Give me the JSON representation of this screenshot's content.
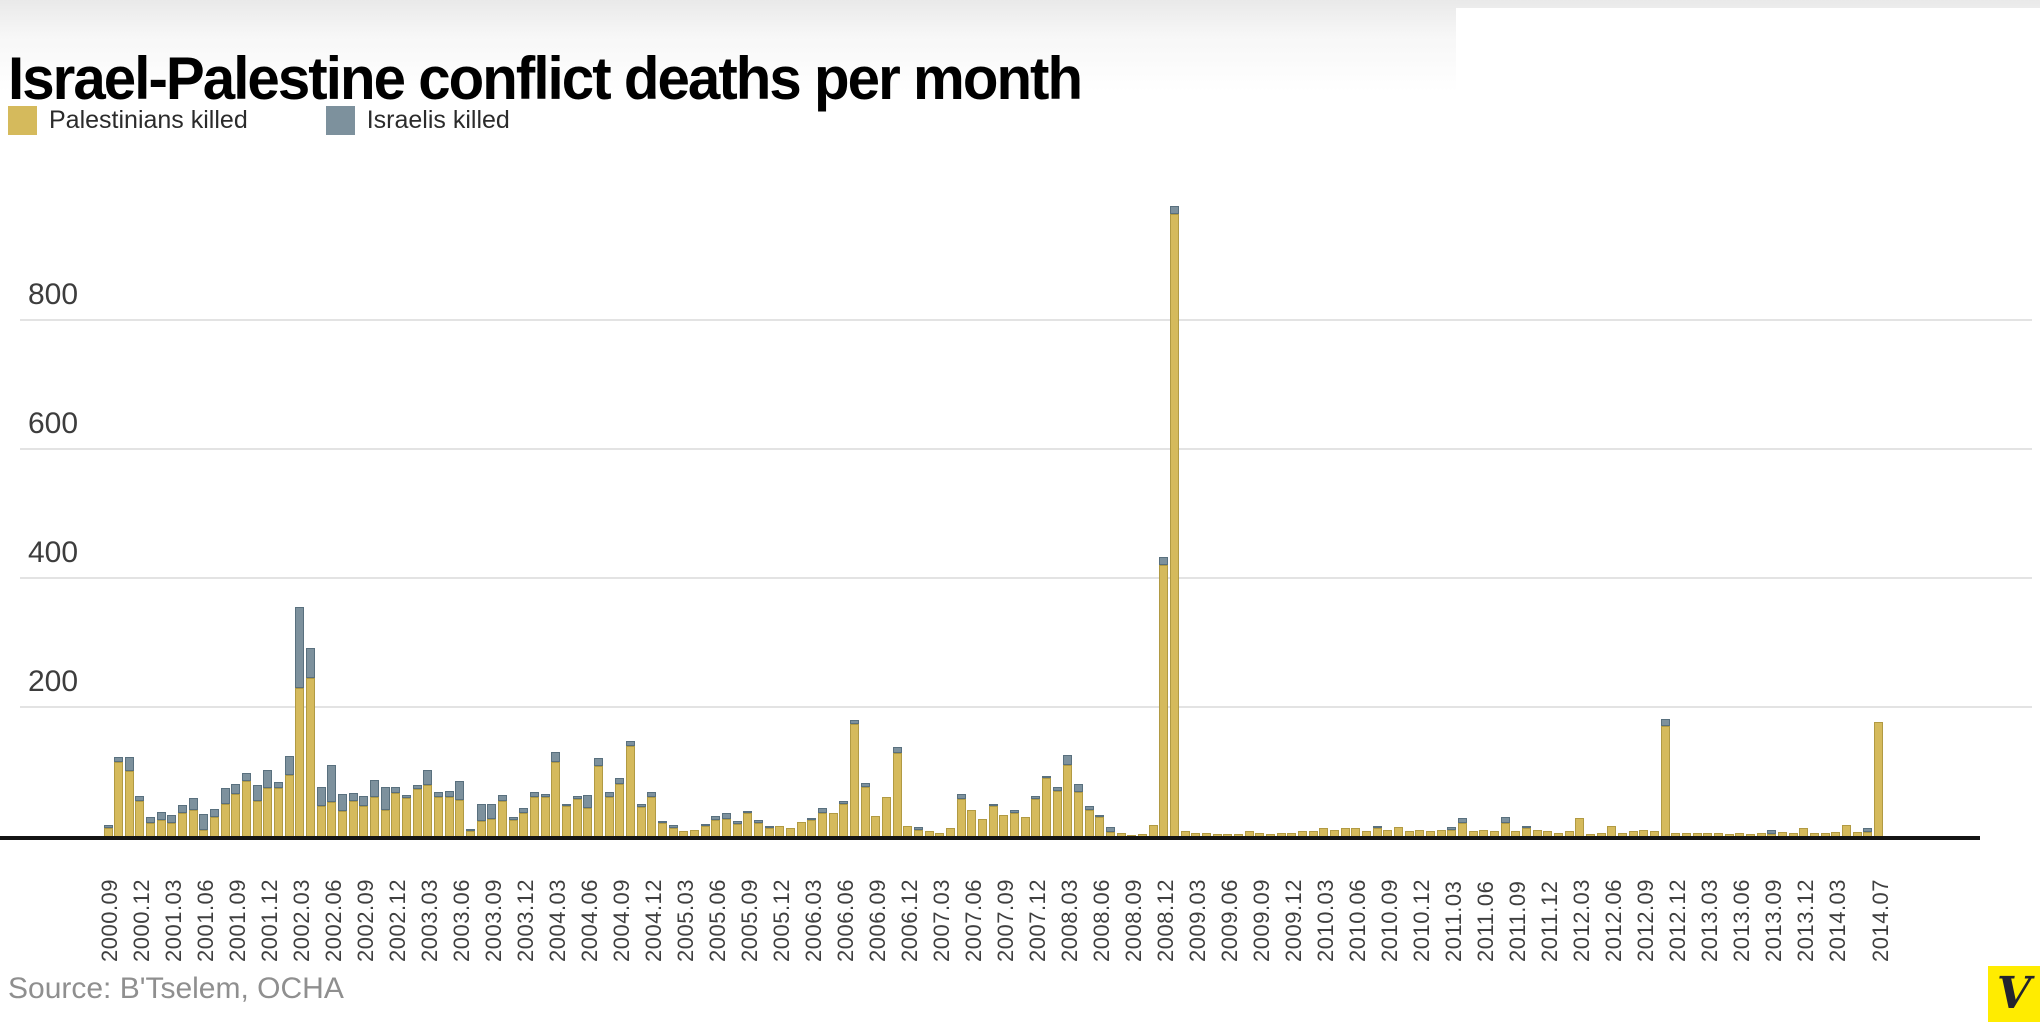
{
  "page": {
    "title": "Israel-Palestine conflict deaths per month",
    "source": "Source: B'Tselem, OCHA",
    "logo_letter": "V",
    "logo_bg": "#ffec00",
    "logo_fg": "#23242e"
  },
  "legend": [
    {
      "label": "Palestinians killed",
      "color": "#d5ba5c"
    },
    {
      "label": "Israelis killed",
      "color": "#7d919d"
    }
  ],
  "chart_data": {
    "type": "bar",
    "stacked": true,
    "title": "Israel-Palestine conflict deaths per month",
    "xlabel": "",
    "ylabel": "",
    "ylim": [
      0,
      1000
    ],
    "yticks": [
      200,
      400,
      600,
      800
    ],
    "grid": true,
    "legend_position": "top-left",
    "colors": {
      "palestinians": "#d5ba5c",
      "israelis": "#7d919d"
    },
    "x_tick_rule": "every 3rd month from 2000.09 through 2014.03, plus final month 2014.07",
    "series_names": [
      "Palestinians killed",
      "Israelis killed"
    ],
    "months_format": [
      "month",
      "palestinians_killed",
      "israelis_killed"
    ],
    "months": [
      [
        "2000.09",
        13,
        5
      ],
      [
        "2000.10",
        115,
        7
      ],
      [
        "2000.11",
        100,
        22
      ],
      [
        "2000.12",
        55,
        8
      ],
      [
        "2001.01",
        20,
        10
      ],
      [
        "2001.02",
        25,
        12
      ],
      [
        "2001.03",
        20,
        12
      ],
      [
        "2001.04",
        35,
        12
      ],
      [
        "2001.05",
        40,
        18
      ],
      [
        "2001.06",
        10,
        25
      ],
      [
        "2001.07",
        30,
        12
      ],
      [
        "2001.08",
        50,
        25
      ],
      [
        "2001.09",
        65,
        15
      ],
      [
        "2001.10",
        85,
        12
      ],
      [
        "2001.11",
        55,
        25
      ],
      [
        "2001.12",
        75,
        28
      ],
      [
        "2002.01",
        75,
        10
      ],
      [
        "2002.02",
        95,
        30
      ],
      [
        "2002.03",
        230,
        125
      ],
      [
        "2002.04",
        245,
        47
      ],
      [
        "2002.05",
        47,
        30
      ],
      [
        "2002.06",
        52,
        58
      ],
      [
        "2002.07",
        38,
        27
      ],
      [
        "2002.08",
        55,
        13
      ],
      [
        "2002.09",
        46,
        16
      ],
      [
        "2002.10",
        60,
        26
      ],
      [
        "2002.11",
        40,
        36
      ],
      [
        "2002.12",
        66,
        9
      ],
      [
        "2003.01",
        59,
        5
      ],
      [
        "2003.02",
        73,
        6
      ],
      [
        "2003.03",
        79,
        23
      ],
      [
        "2003.04",
        61,
        8
      ],
      [
        "2003.05",
        61,
        9
      ],
      [
        "2003.06",
        56,
        30
      ],
      [
        "2003.07",
        7,
        3
      ],
      [
        "2003.08",
        23,
        26
      ],
      [
        "2003.09",
        26,
        23
      ],
      [
        "2003.10",
        55,
        10
      ],
      [
        "2003.11",
        25,
        5
      ],
      [
        "2003.12",
        35,
        8
      ],
      [
        "2004.01",
        60,
        8
      ],
      [
        "2004.02",
        60,
        5
      ],
      [
        "2004.03",
        115,
        15
      ],
      [
        "2004.04",
        47,
        3
      ],
      [
        "2004.05",
        58,
        5
      ],
      [
        "2004.06",
        43,
        20
      ],
      [
        "2004.07",
        108,
        12
      ],
      [
        "2004.08",
        60,
        8
      ],
      [
        "2004.09",
        80,
        10
      ],
      [
        "2004.10",
        140,
        7
      ],
      [
        "2004.11",
        45,
        5
      ],
      [
        "2004.12",
        60,
        8
      ],
      [
        "2005.01",
        20,
        3
      ],
      [
        "2005.02",
        12,
        5
      ],
      [
        "2005.03",
        8,
        2
      ],
      [
        "2005.04",
        10,
        2
      ],
      [
        "2005.05",
        15,
        3
      ],
      [
        "2005.06",
        25,
        6
      ],
      [
        "2005.07",
        26,
        9
      ],
      [
        "2005.08",
        18,
        5
      ],
      [
        "2005.09",
        35,
        3
      ],
      [
        "2005.10",
        20,
        4
      ],
      [
        "2005.11",
        12,
        3
      ],
      [
        "2005.12",
        15,
        2
      ],
      [
        "2006.01",
        12,
        2
      ],
      [
        "2006.02",
        22,
        2
      ],
      [
        "2006.03",
        25,
        3
      ],
      [
        "2006.04",
        35,
        8
      ],
      [
        "2006.05",
        35,
        2
      ],
      [
        "2006.06",
        50,
        4
      ],
      [
        "2006.07",
        174,
        6
      ],
      [
        "2006.08",
        76,
        6
      ],
      [
        "2006.09",
        31,
        2
      ],
      [
        "2006.10",
        60,
        2
      ],
      [
        "2006.11",
        128,
        9
      ],
      [
        "2006.12",
        16,
        2
      ],
      [
        "2007.01",
        10,
        5
      ],
      [
        "2007.02",
        8,
        2
      ],
      [
        "2007.03",
        4,
        1
      ],
      [
        "2007.04",
        13,
        2
      ],
      [
        "2007.05",
        57,
        8
      ],
      [
        "2007.06",
        41,
        2
      ],
      [
        "2007.07",
        26,
        2
      ],
      [
        "2007.08",
        46,
        3
      ],
      [
        "2007.09",
        33,
        2
      ],
      [
        "2007.10",
        36,
        5
      ],
      [
        "2007.11",
        30,
        2
      ],
      [
        "2007.12",
        58,
        5
      ],
      [
        "2008.01",
        90,
        3
      ],
      [
        "2008.02",
        70,
        6
      ],
      [
        "2008.03",
        110,
        15
      ],
      [
        "2008.04",
        68,
        12
      ],
      [
        "2008.05",
        41,
        6
      ],
      [
        "2008.06",
        30,
        3
      ],
      [
        "2008.07",
        6,
        7
      ],
      [
        "2008.08",
        5,
        2
      ],
      [
        "2008.09",
        2,
        1
      ],
      [
        "2008.10",
        3,
        1
      ],
      [
        "2008.11",
        17,
        1
      ],
      [
        "2008.12",
        420,
        12
      ],
      [
        "2009.01",
        965,
        12
      ],
      [
        "2009.02",
        8,
        1
      ],
      [
        "2009.03",
        5,
        1
      ],
      [
        "2009.04",
        5,
        1
      ],
      [
        "2009.05",
        3,
        1
      ],
      [
        "2009.06",
        3,
        1
      ],
      [
        "2009.07",
        3,
        1
      ],
      [
        "2009.08",
        8,
        2
      ],
      [
        "2009.09",
        5,
        1
      ],
      [
        "2009.10",
        3,
        1
      ],
      [
        "2009.11",
        5,
        1
      ],
      [
        "2009.12",
        5,
        1
      ],
      [
        "2010.01",
        8,
        2
      ],
      [
        "2010.02",
        8,
        1
      ],
      [
        "2010.03",
        12,
        2
      ],
      [
        "2010.04",
        10,
        2
      ],
      [
        "2010.05",
        12,
        2
      ],
      [
        "2010.06",
        12,
        1
      ],
      [
        "2010.07",
        8,
        1
      ],
      [
        "2010.08",
        12,
        3
      ],
      [
        "2010.09",
        10,
        2
      ],
      [
        "2010.10",
        14,
        1
      ],
      [
        "2010.11",
        8,
        1
      ],
      [
        "2010.12",
        10,
        1
      ],
      [
        "2011.01",
        8,
        1
      ],
      [
        "2011.02",
        10,
        1
      ],
      [
        "2011.03",
        10,
        5
      ],
      [
        "2011.04",
        20,
        8
      ],
      [
        "2011.05",
        8,
        2
      ],
      [
        "2011.06",
        10,
        1
      ],
      [
        "2011.07",
        8,
        1
      ],
      [
        "2011.08",
        20,
        9
      ],
      [
        "2011.09",
        8,
        2
      ],
      [
        "2011.10",
        12,
        3
      ],
      [
        "2011.11",
        10,
        1
      ],
      [
        "2011.12",
        8,
        1
      ],
      [
        "2012.01",
        5,
        1
      ],
      [
        "2012.02",
        8,
        1
      ],
      [
        "2012.03",
        28,
        1
      ],
      [
        "2012.04",
        3,
        1
      ],
      [
        "2012.05",
        5,
        1
      ],
      [
        "2012.06",
        15,
        2
      ],
      [
        "2012.07",
        5,
        1
      ],
      [
        "2012.08",
        8,
        1
      ],
      [
        "2012.09",
        10,
        1
      ],
      [
        "2012.10",
        8,
        2
      ],
      [
        "2012.11",
        170,
        11
      ],
      [
        "2012.12",
        5,
        1
      ],
      [
        "2013.01",
        5,
        1
      ],
      [
        "2013.02",
        5,
        1
      ],
      [
        "2013.03",
        4,
        1
      ],
      [
        "2013.04",
        5,
        1
      ],
      [
        "2013.05",
        3,
        1
      ],
      [
        "2013.06",
        4,
        1
      ],
      [
        "2013.07",
        3,
        1
      ],
      [
        "2013.08",
        5,
        1
      ],
      [
        "2013.09",
        3,
        6
      ],
      [
        "2013.10",
        6,
        1
      ],
      [
        "2013.11",
        5,
        1
      ],
      [
        "2013.12",
        12,
        1
      ],
      [
        "2014.01",
        5,
        1
      ],
      [
        "2014.02",
        4,
        1
      ],
      [
        "2014.03",
        6,
        2
      ],
      [
        "2014.04",
        17,
        1
      ],
      [
        "2014.05",
        6,
        1
      ],
      [
        "2014.06",
        6,
        6
      ],
      [
        "2014.07",
        176,
        1
      ]
    ]
  }
}
